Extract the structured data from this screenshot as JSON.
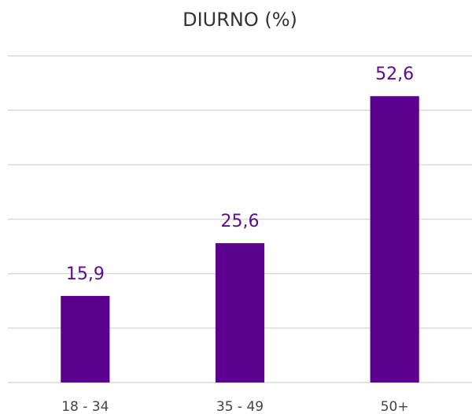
{
  "chart_data": {
    "type": "bar",
    "title": "DIURNO (%)",
    "categories": [
      "18 - 34",
      "35 - 49",
      "50+"
    ],
    "values": [
      15.9,
      25.6,
      52.6
    ],
    "value_labels": [
      "15,9",
      "25,6",
      "52,6"
    ],
    "color": "#5c008e",
    "ylim": [
      0,
      60
    ],
    "yticks": [
      0,
      10,
      20,
      30,
      40,
      50,
      60
    ],
    "grid": true
  }
}
